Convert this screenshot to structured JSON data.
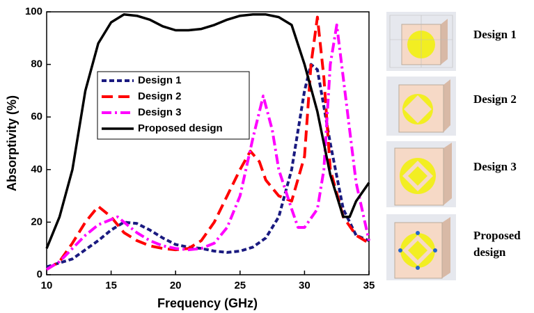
{
  "chart_data": {
    "type": "line",
    "xlabel": "Frequency (GHz)",
    "ylabel": "Absorptivity (%)",
    "xlim": [
      10,
      35
    ],
    "ylim": [
      0,
      100
    ],
    "xticks": [
      10,
      15,
      20,
      25,
      30,
      35
    ],
    "yticks": [
      0,
      20,
      40,
      60,
      80,
      100
    ],
    "series": [
      {
        "name": "Design 1",
        "color": "#1a1a80",
        "dash": "dashed",
        "x": [
          10,
          12,
          14,
          15,
          16,
          17,
          18,
          19,
          20,
          21,
          22,
          23,
          24,
          25,
          26,
          27,
          28,
          29,
          30,
          30.5,
          31,
          32,
          33,
          34,
          35
        ],
        "values": [
          3,
          6,
          13,
          17,
          20,
          19.5,
          17,
          14,
          11.5,
          10.5,
          10,
          9,
          8.5,
          9,
          10.5,
          14,
          22,
          40,
          70,
          80,
          78,
          50,
          25,
          15,
          13
        ]
      },
      {
        "name": "Design 2",
        "color": "#ff0000",
        "dash": "long-dashed",
        "x": [
          10,
          11,
          12,
          13,
          14,
          15,
          16,
          17,
          18,
          19,
          20,
          21,
          22,
          23,
          24,
          25,
          25.8,
          26.5,
          27,
          28,
          29,
          30,
          30.5,
          31,
          31.5,
          32,
          33,
          34,
          35
        ],
        "values": [
          2,
          5,
          12,
          20,
          26,
          22,
          16,
          13,
          11,
          10,
          9.5,
          10,
          13,
          20,
          30,
          40,
          47,
          43,
          36,
          30,
          28,
          45,
          80,
          98,
          75,
          40,
          22,
          15,
          12
        ]
      },
      {
        "name": "Design 3",
        "color": "#ff00ff",
        "dash": "dash-dot",
        "x": [
          10,
          11,
          12,
          13,
          14,
          15,
          15.5,
          16,
          17,
          18,
          19,
          20,
          21,
          22,
          23,
          24,
          25,
          26,
          26.8,
          27.5,
          28,
          29,
          29.5,
          30,
          31,
          31.5,
          32,
          32.5,
          33,
          34,
          35
        ],
        "values": [
          2,
          5,
          10,
          15,
          19,
          21,
          22,
          20,
          16,
          13,
          11,
          10,
          9.5,
          10,
          12,
          18,
          30,
          52,
          68,
          55,
          40,
          25,
          18,
          18,
          25,
          40,
          80,
          95,
          75,
          35,
          13
        ]
      },
      {
        "name": "Proposed design",
        "color": "#000000",
        "dash": "solid",
        "x": [
          10,
          11,
          12,
          13,
          14,
          15,
          16,
          17,
          18,
          19,
          20,
          21,
          22,
          23,
          24,
          25,
          26,
          27,
          28,
          29,
          30,
          31,
          32,
          33,
          33.5,
          34,
          35
        ],
        "values": [
          10,
          22,
          40,
          70,
          88,
          96,
          99,
          98.5,
          97,
          94.5,
          93,
          93,
          93.5,
          95,
          97,
          98.5,
          99,
          99,
          98,
          95,
          80,
          62,
          38,
          22,
          22,
          28,
          35
        ]
      }
    ]
  },
  "panels": [
    {
      "label": "Design 1"
    },
    {
      "label": "Design 2"
    },
    {
      "label": "Design 3"
    },
    {
      "label": "Proposed design"
    }
  ]
}
